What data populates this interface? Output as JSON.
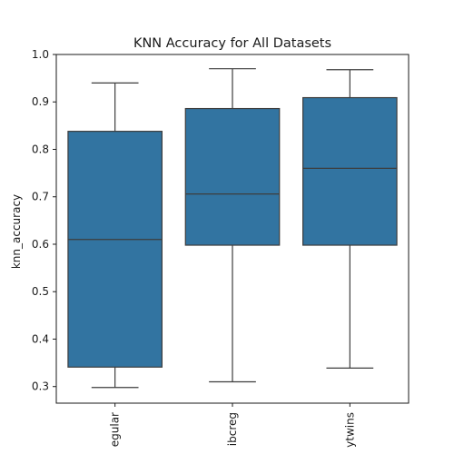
{
  "chart_data": {
    "type": "box",
    "title": "KNN Accuracy for All Datasets",
    "xlabel": "",
    "ylabel": "knn_accuracy",
    "ylim": [
      0.265,
      1.0
    ],
    "yticks": [
      0.3,
      0.4,
      0.5,
      0.6,
      0.7,
      0.8,
      0.9,
      1.0
    ],
    "ytick_labels": [
      "0.3",
      "0.4",
      "0.5",
      "0.6",
      "0.7",
      "0.8",
      "0.9",
      "1.0"
    ],
    "grid": false,
    "box_color": "#3274a1",
    "line_color": "#3d3d3d",
    "categories": [
      "egular",
      "ibcreg",
      "ytwins"
    ],
    "boxes": [
      {
        "label": "egular",
        "whisker_low": 0.298,
        "q1": 0.341,
        "median": 0.61,
        "q3": 0.838,
        "whisker_high": 0.94
      },
      {
        "label": "ibcreg",
        "whisker_low": 0.31,
        "q1": 0.598,
        "median": 0.706,
        "q3": 0.886,
        "whisker_high": 0.97
      },
      {
        "label": "ytwins",
        "whisker_low": 0.339,
        "q1": 0.598,
        "median": 0.76,
        "q3": 0.909,
        "whisker_high": 0.968
      }
    ]
  }
}
